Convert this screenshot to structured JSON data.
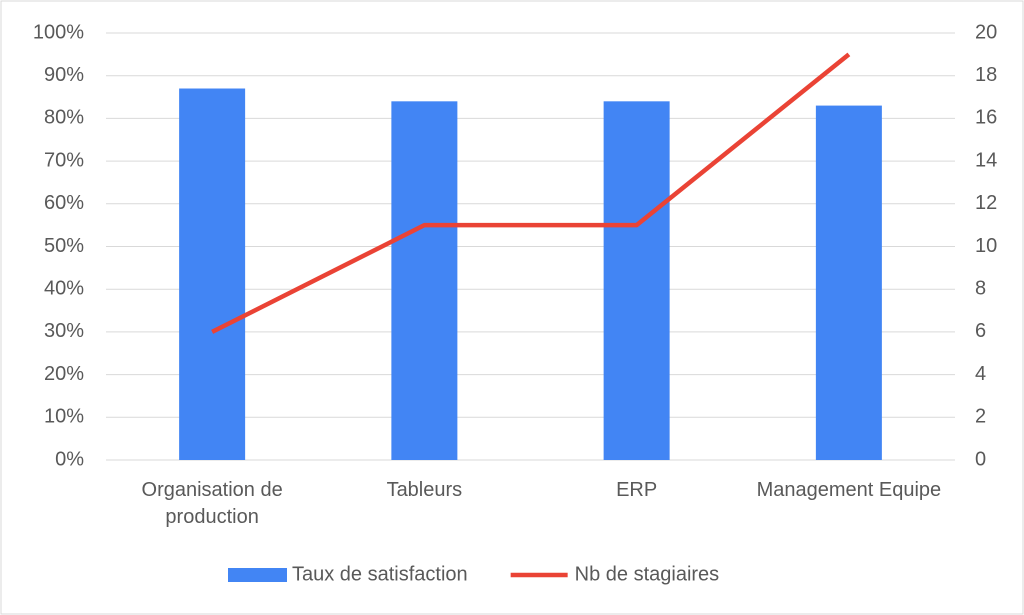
{
  "chart_data": {
    "type": "combo",
    "categories": [
      "Organisation de production",
      "Tableurs",
      "ERP",
      "Management Equipe"
    ],
    "series": [
      {
        "name": "Taux de satisfaction",
        "type": "bar",
        "color": "#4285f4",
        "values": [
          87,
          84,
          84,
          83
        ]
      },
      {
        "name": "Nb de stagiaires",
        "type": "line",
        "axis": "y2",
        "color": "#ea4335",
        "values": [
          6,
          11,
          11,
          19
        ]
      }
    ],
    "ylim": [
      0,
      100
    ],
    "yticks": [
      {
        "value": 0,
        "label": "0%"
      },
      {
        "value": 10,
        "label": "10%"
      },
      {
        "value": 20,
        "label": "20%"
      },
      {
        "value": 30,
        "label": "30%"
      },
      {
        "value": 40,
        "label": "40%"
      },
      {
        "value": 50,
        "label": "50%"
      },
      {
        "value": 60,
        "label": "60%"
      },
      {
        "value": 70,
        "label": "70%"
      },
      {
        "value": 80,
        "label": "80%"
      },
      {
        "value": 90,
        "label": "90%"
      },
      {
        "value": 100,
        "label": "100%"
      }
    ],
    "y2lim": [
      0,
      20
    ],
    "y2ticks": [
      0,
      2,
      4,
      6,
      8,
      10,
      12,
      14,
      16,
      18,
      20
    ],
    "grid": true,
    "legend": "bottom"
  }
}
